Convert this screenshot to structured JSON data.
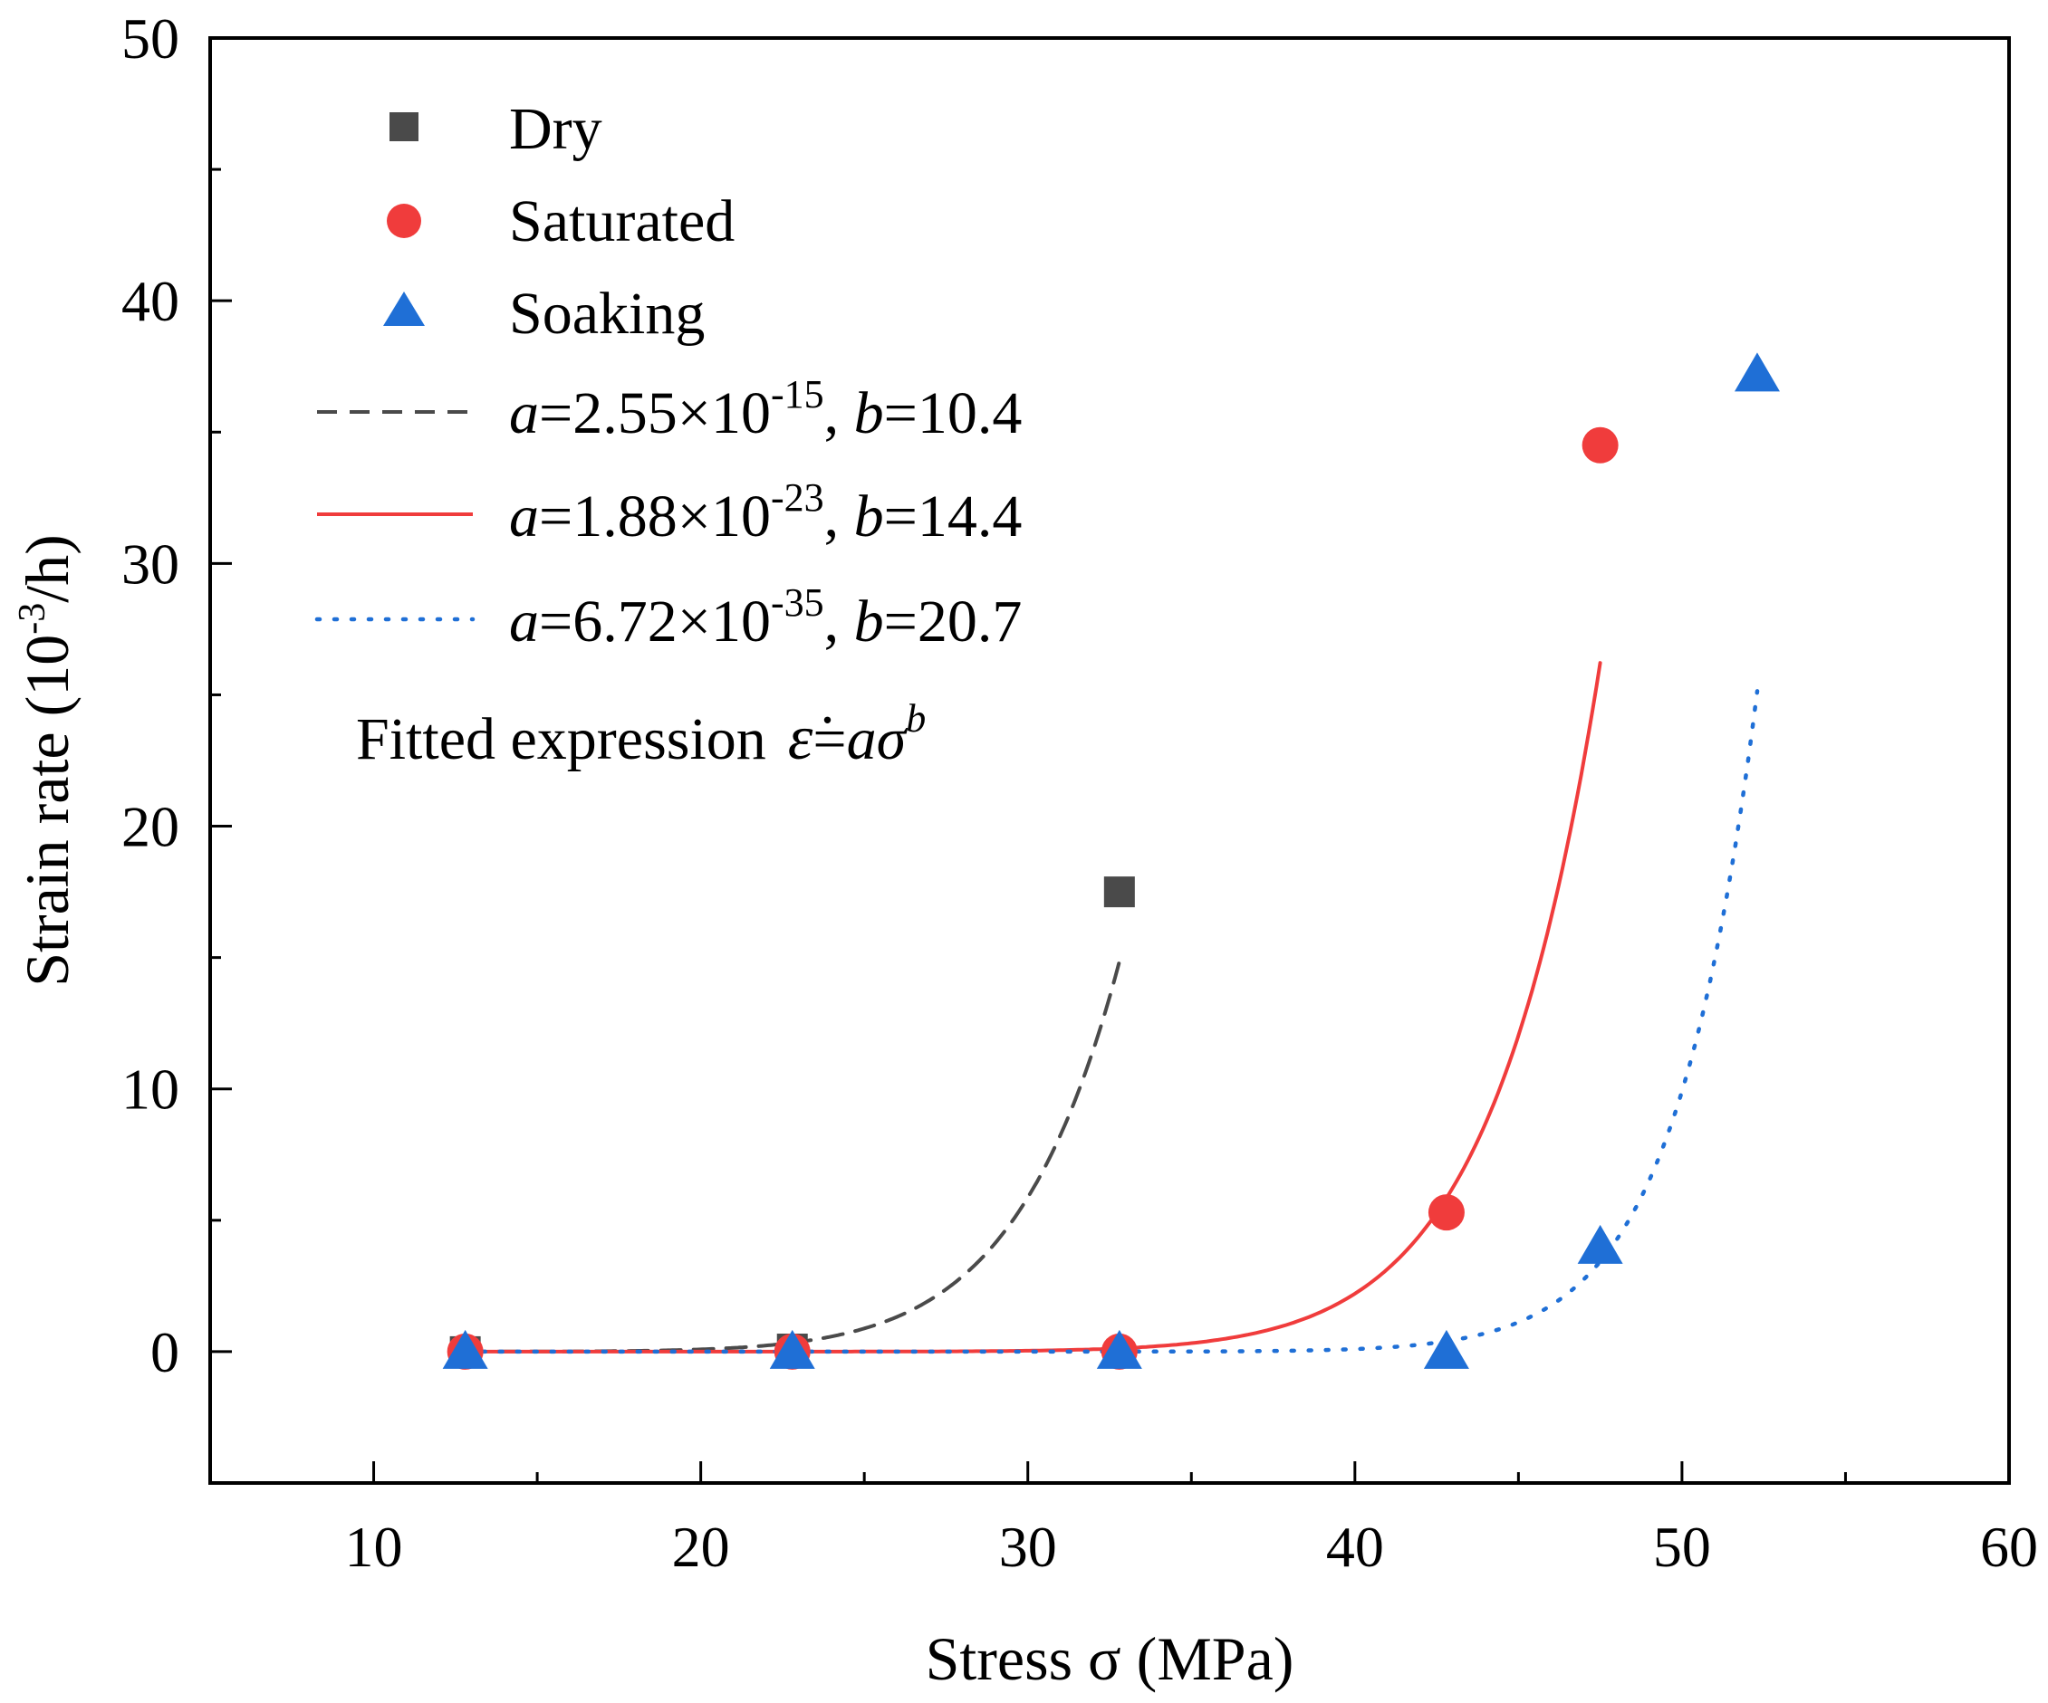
{
  "chart_data": {
    "type": "scatter",
    "xlabel": "Stress σ (MPa)",
    "ylabel": {
      "main": "Strain rate (10",
      "sup": "-3",
      "tail": "/h)"
    },
    "xlim": [
      5,
      60
    ],
    "ylim": [
      -5,
      50
    ],
    "x_ticks": [
      10,
      20,
      30,
      40,
      50,
      60
    ],
    "y_ticks": [
      0,
      10,
      20,
      30,
      40,
      50
    ],
    "grid": false,
    "legend_position": "top-left",
    "series": [
      {
        "name": "Dry",
        "marker": "square",
        "color": "#4a4a4a",
        "x": [
          12.8,
          22.8,
          32.8
        ],
        "y": [
          0.0,
          0.1,
          17.5
        ]
      },
      {
        "name": "Saturated",
        "marker": "circle",
        "color": "#f03c3c",
        "x": [
          12.8,
          22.8,
          32.8,
          42.8,
          47.5
        ],
        "y": [
          0.0,
          0.0,
          0.0,
          5.3,
          34.5
        ]
      },
      {
        "name": "Soaking",
        "marker": "triangle",
        "color": "#1f6fd6",
        "x": [
          12.8,
          22.8,
          32.8,
          42.8,
          47.5,
          52.3
        ],
        "y": [
          0.0,
          0.0,
          0.0,
          0.0,
          4.0,
          37.2
        ]
      }
    ],
    "fits": [
      {
        "series": "Dry",
        "style": "dashed",
        "color": "#4a4a4a",
        "a": 2.55e-15,
        "b": 10.4,
        "x_range": [
          12.8,
          32.8
        ],
        "label": {
          "a_name": "a",
          "a_mant": "=2.55×10",
          "a_exp": "-15",
          "sep": ", ",
          "b_name": "b",
          "b_val": "=10.4"
        }
      },
      {
        "series": "Saturated",
        "style": "solid",
        "color": "#f03c3c",
        "a": 1.88e-23,
        "b": 14.4,
        "x_range": [
          12.8,
          47.5
        ],
        "label": {
          "a_name": "a",
          "a_mant": "=1.88×10",
          "a_exp": "-23",
          "sep": ", ",
          "b_name": "b",
          "b_val": "=14.4"
        }
      },
      {
        "series": "Soaking",
        "style": "dotted",
        "color": "#1f6fd6",
        "a": 6.72e-35,
        "b": 20.7,
        "x_range": [
          12.8,
          52.3
        ],
        "label": {
          "a_name": "a",
          "a_mant": "=6.72×10",
          "a_exp": "-35",
          "sep": ", ",
          "b_name": "b",
          "b_val": "=20.7"
        }
      }
    ],
    "annotation": {
      "prefix": "Fitted expression",
      "lhs": "ε̇",
      "eq": "=",
      "a": "a",
      "sigma": "σ",
      "b": "b"
    }
  }
}
